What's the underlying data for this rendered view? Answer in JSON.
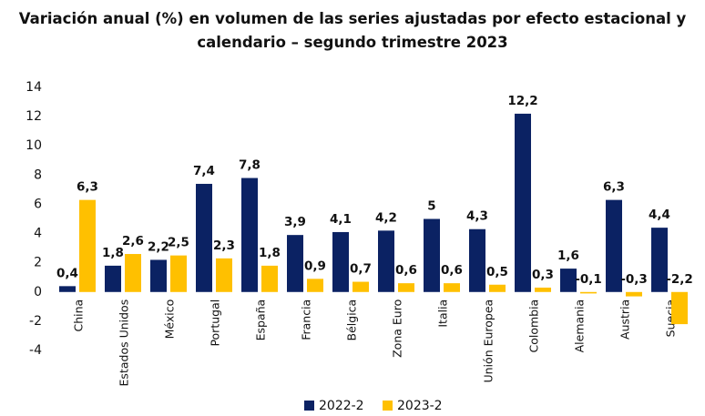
{
  "chart_data": {
    "type": "bar",
    "title": "Variación anual (%) en volumen de las series ajustadas por efecto estacional y calendario – segundo trimestre 2023",
    "categories": [
      "China",
      "Estados Unidos",
      "México",
      "Portugal",
      "España",
      "Francia",
      "Bélgica",
      "Zona Euro",
      "Italia",
      "Unión Europea",
      "Colombia",
      "Alemania",
      "Austria",
      "Suecia"
    ],
    "series": [
      {
        "name": "2022-2",
        "color": "#0b2263",
        "values": [
          0.4,
          1.8,
          2.2,
          7.4,
          7.8,
          3.9,
          4.1,
          4.2,
          5,
          4.3,
          12.2,
          1.6,
          6.3,
          4.4
        ],
        "value_labels": [
          "0,4",
          "1,8",
          "2,2",
          "7,4",
          "7,8",
          "3,9",
          "4,1",
          "4,2",
          "5",
          "4,3",
          "12,2",
          "1,6",
          "6,3",
          "4,4"
        ]
      },
      {
        "name": "2023-2",
        "color": "#ffc000",
        "values": [
          6.3,
          2.6,
          2.5,
          2.3,
          1.8,
          0.9,
          0.7,
          0.6,
          0.6,
          0.5,
          0.3,
          -0.1,
          -0.3,
          -2.2
        ],
        "value_labels": [
          "6,3",
          "2,6",
          "2,5",
          "2,3",
          "1,8",
          "0,9",
          "0,7",
          "0,6",
          "0,6",
          "0,5",
          "0,3",
          "-0,1",
          "-0,3",
          "-2,2"
        ]
      }
    ],
    "ylim": [
      -4,
      14
    ],
    "yticks": [
      -4,
      -2,
      0,
      2,
      4,
      6,
      8,
      10,
      12,
      14
    ],
    "grid": false,
    "legend": "bottom"
  }
}
